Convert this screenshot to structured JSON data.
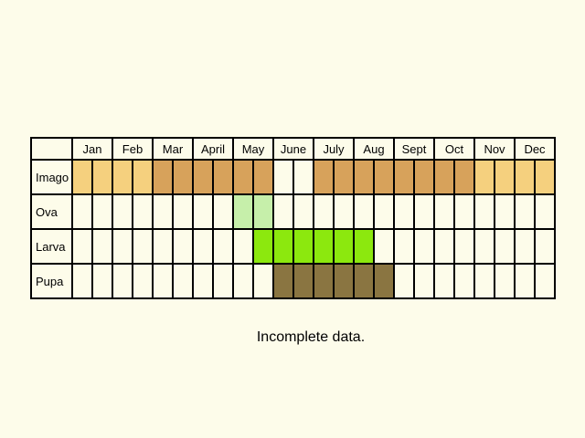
{
  "months": [
    "Jan",
    "Feb",
    "Mar",
    "April",
    "May",
    "June",
    "July",
    "Aug",
    "Sept",
    "Oct",
    "Nov",
    "Dec"
  ],
  "stages": [
    {
      "label": "Imago",
      "cells": [
        "L",
        "L",
        "L",
        "L",
        "M",
        "M",
        "M",
        "M",
        "M",
        "M",
        "",
        "",
        "M",
        "M",
        "M",
        "M",
        "M",
        "M",
        "M",
        "M",
        "L",
        "L",
        "L",
        "L"
      ]
    },
    {
      "label": "Ova",
      "cells": [
        "",
        "",
        "",
        "",
        "",
        "",
        "",
        "",
        "P",
        "P",
        "",
        "",
        "",
        "",
        "",
        "",
        "",
        "",
        "",
        "",
        "",
        "",
        "",
        ""
      ]
    },
    {
      "label": "Larva",
      "cells": [
        "",
        "",
        "",
        "",
        "",
        "",
        "",
        "",
        "",
        "G",
        "G",
        "G",
        "G",
        "G",
        "G",
        "",
        "",
        "",
        "",
        "",
        "",
        "",
        "",
        ""
      ]
    },
    {
      "label": "Pupa",
      "cells": [
        "",
        "",
        "",
        "",
        "",
        "",
        "",
        "",
        "",
        "",
        "B",
        "B",
        "B",
        "B",
        "B",
        "B",
        "",
        "",
        "",
        "",
        "",
        "",
        "",
        ""
      ]
    }
  ],
  "legend_colors": {
    "L": "#f5d07e",
    "M": "#d7a25b",
    "P": "#c6efaa",
    "G": "#8ce80e",
    "B": "#8a7541"
  },
  "caption": "Incomplete data."
}
